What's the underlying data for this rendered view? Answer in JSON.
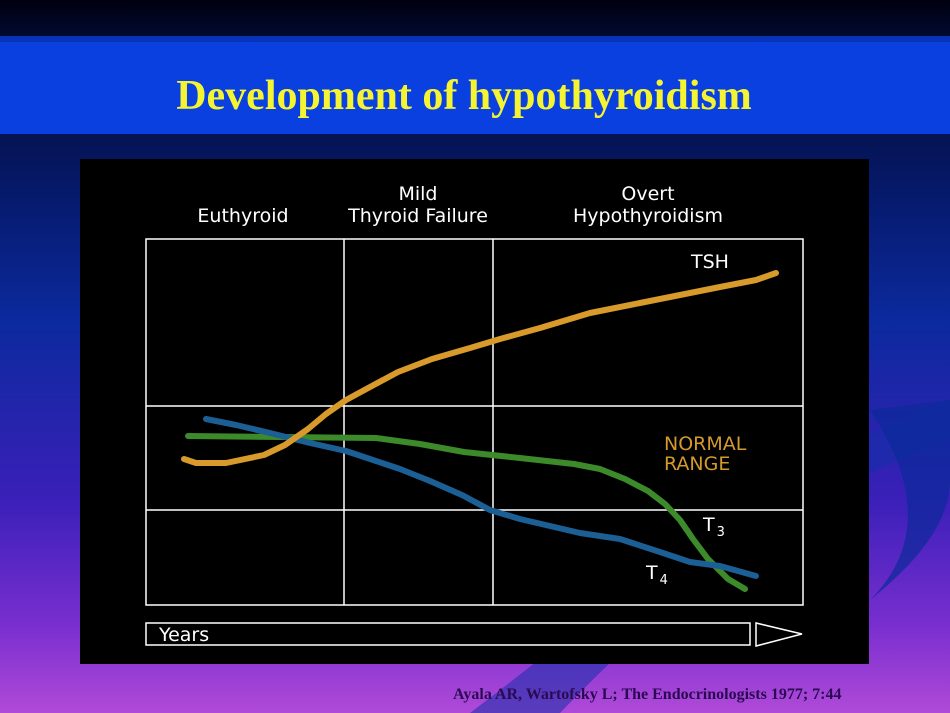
{
  "slide": {
    "title": "Development of hypothyroidism",
    "citation": "Ayala AR, Wartofsky L; The Endocrinologists 1977; 7:44"
  },
  "diagram": {
    "stages": [
      {
        "line1": "",
        "line2": "Euthyroid"
      },
      {
        "line1": "Mild",
        "line2": "Thyroid Failure"
      },
      {
        "line1": "Overt",
        "line2": "Hypothyroidism"
      }
    ],
    "curve_labels": {
      "tsh": "TSH",
      "t3_base": "T",
      "t3_sub": "3",
      "t4_base": "T",
      "t4_sub": "4"
    },
    "normal_range": {
      "line1": "NORMAL",
      "line2": "RANGE"
    },
    "time_axis": "Years"
  },
  "colors": {
    "tsh": "#d89a2b",
    "t3": "#3c8a2a",
    "t4": "#1c5f95",
    "normal_range_text": "#d39a2c",
    "title": "#f4f432",
    "title_band": "#0a3fe0"
  }
}
